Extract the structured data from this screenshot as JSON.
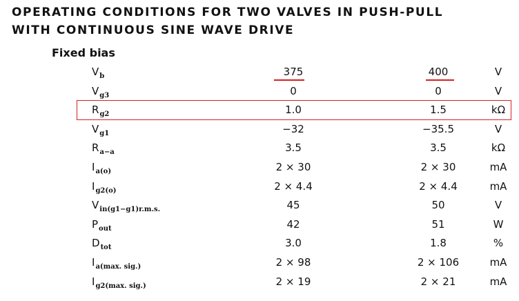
{
  "header": {
    "title_line1": "OPERATING CONDITIONS FOR TWO VALVES IN PUSH-PULL",
    "title_line2": "WITH CONTINUOUS SINE WAVE DRIVE",
    "section": "Fixed bias"
  },
  "table": {
    "rows": [
      {
        "symbol": "V",
        "subscript": "b",
        "col1": "375",
        "col2": "400",
        "unit": "V"
      },
      {
        "symbol": "V",
        "subscript": "g3",
        "col1": "0",
        "col2": "0",
        "unit": "V"
      },
      {
        "symbol": "R",
        "subscript": "g2",
        "col1": "1.0",
        "col2": "1.5",
        "unit": "kΩ"
      },
      {
        "symbol": "V",
        "subscript": "g1",
        "col1": "−32",
        "col2": "−35.5",
        "unit": "V"
      },
      {
        "symbol": "R",
        "subscript": "a−a",
        "col1": "3.5",
        "col2": "3.5",
        "unit": "kΩ"
      },
      {
        "symbol": "I",
        "subscript": "a(o)",
        "col1": "2 × 30",
        "col2": "2 × 30",
        "unit": "mA"
      },
      {
        "symbol": "I",
        "subscript": "g2(o)",
        "col1": "2 × 4.4",
        "col2": "2 × 4.4",
        "unit": "mA"
      },
      {
        "symbol": "V",
        "subscript": "in(g1−g1)r.m.s.",
        "col1": "45",
        "col2": "50",
        "unit": "V"
      },
      {
        "symbol": "P",
        "subscript": "out",
        "col1": "42",
        "col2": "51",
        "unit": "W"
      },
      {
        "symbol": "D",
        "subscript": "tot",
        "col1": "3.0",
        "col2": "1.8",
        "unit": "%"
      },
      {
        "symbol": "I",
        "subscript": "a(max. sig.)",
        "col1": "2 × 98",
        "col2": "2 × 106",
        "unit": "mA"
      },
      {
        "symbol": "I",
        "subscript": "g2(max. sig.)",
        "col1": "2 × 19",
        "col2": "2 × 21",
        "unit": "mA"
      }
    ]
  }
}
